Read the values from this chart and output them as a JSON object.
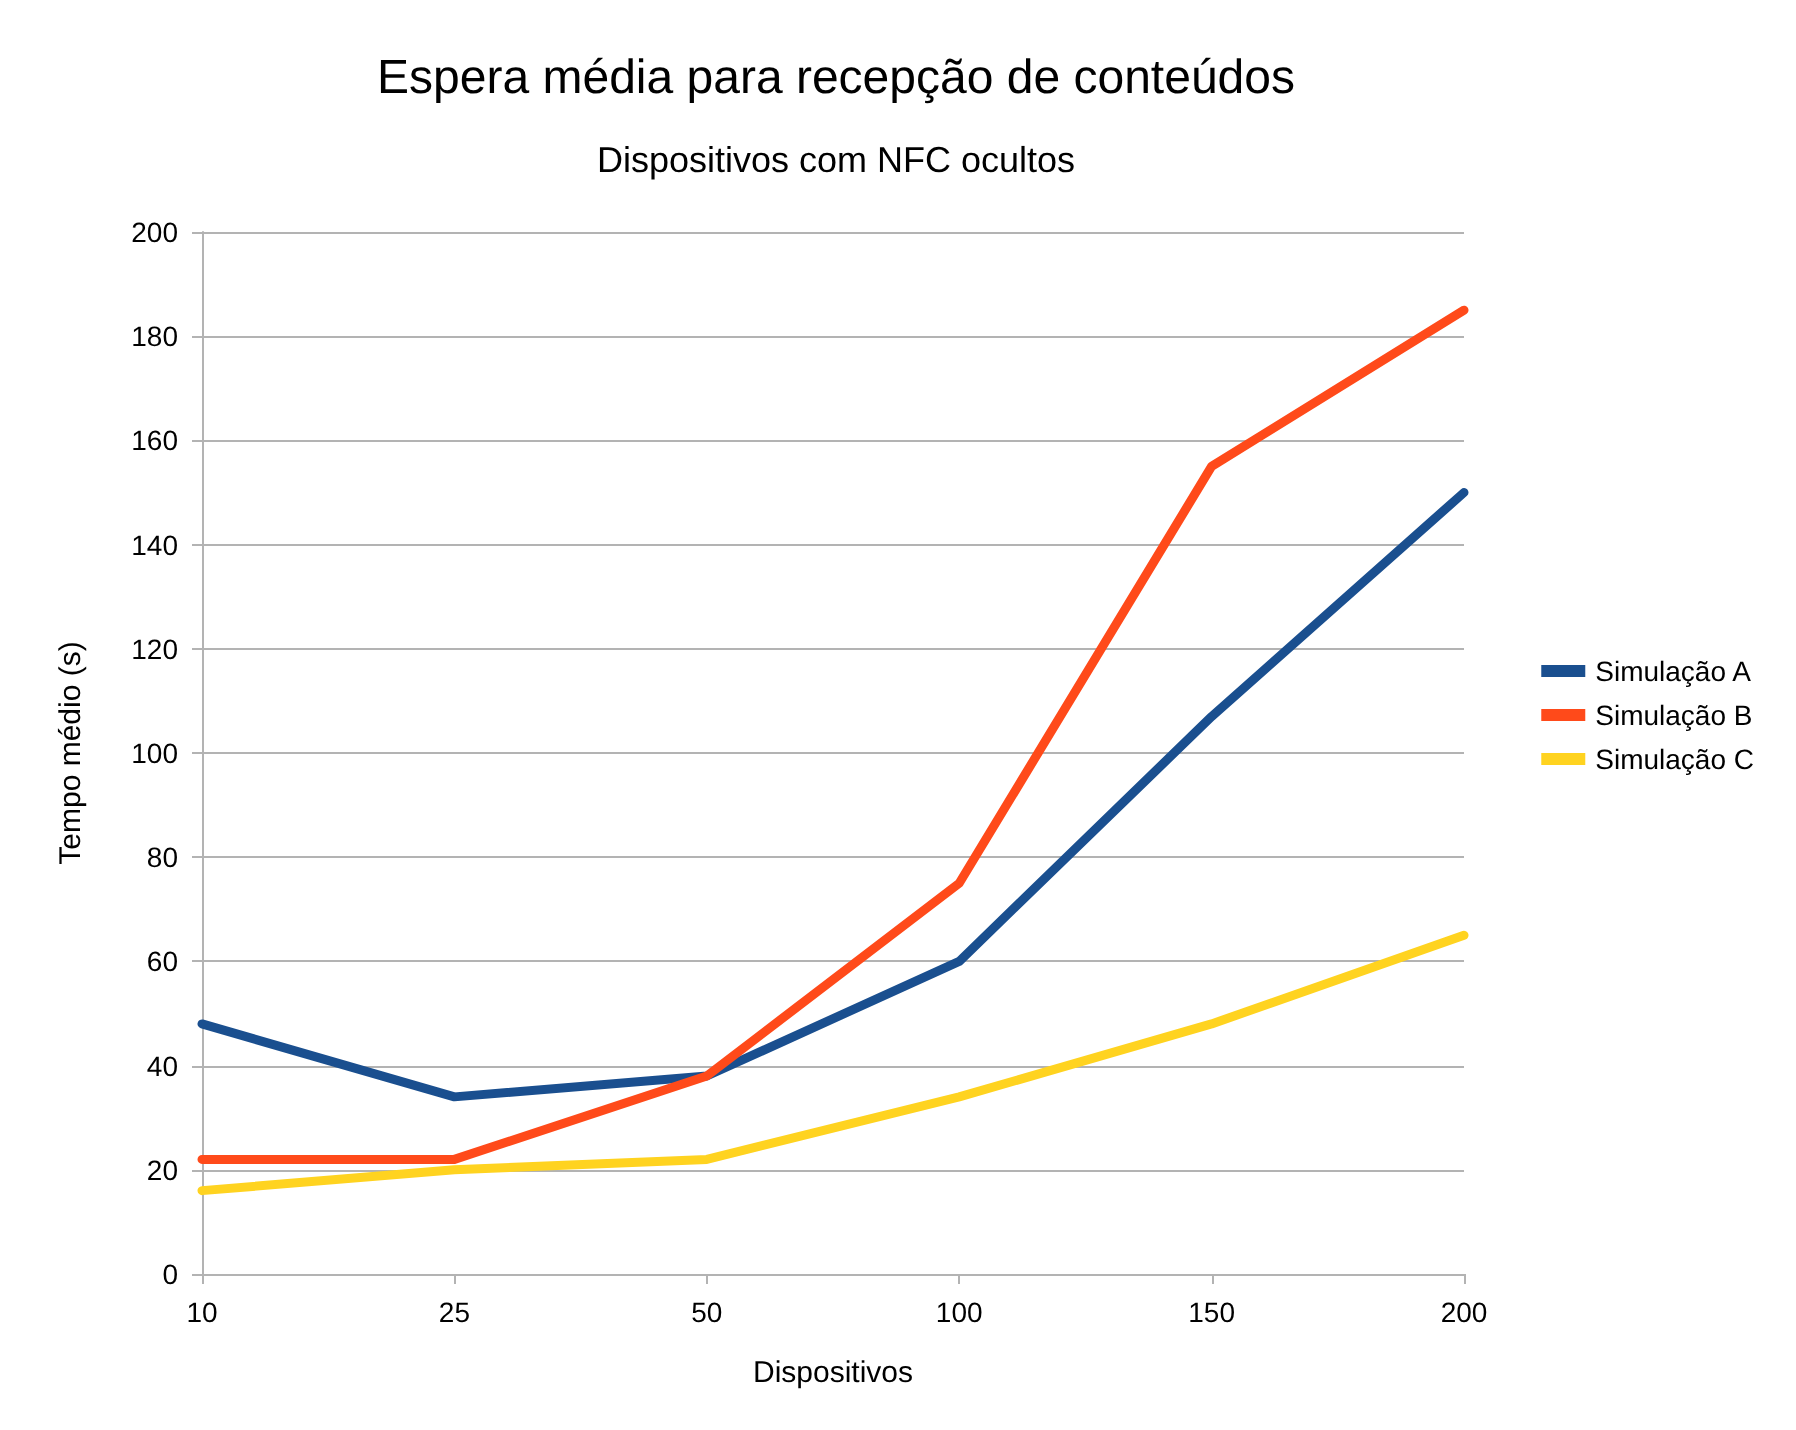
{
  "chart_data": {
    "type": "line",
    "title": "Espera média para recepção de conteúdos",
    "subtitle": "Dispositivos com NFC ocultos",
    "xlabel": "Dispositivos",
    "ylabel": "Tempo médio (s)",
    "categories": [
      "10",
      "25",
      "50",
      "100",
      "150",
      "200"
    ],
    "series": [
      {
        "name": "Simulação A",
        "color": "#1a4f8f",
        "values": [
          48,
          34,
          38,
          60,
          107,
          150
        ]
      },
      {
        "name": "Simulação B",
        "color": "#ff4a1a",
        "values": [
          22,
          22,
          38,
          75,
          155,
          185
        ]
      },
      {
        "name": "Simulação C",
        "color": "#ffd320",
        "values": [
          16,
          20,
          22,
          34,
          48,
          65
        ]
      }
    ],
    "ylim": [
      0,
      200
    ],
    "yticks": [
      0,
      20,
      40,
      60,
      80,
      100,
      120,
      140,
      160,
      180,
      200
    ],
    "grid": "y",
    "legend": "right",
    "marker": "none",
    "line_style": "solid"
  }
}
